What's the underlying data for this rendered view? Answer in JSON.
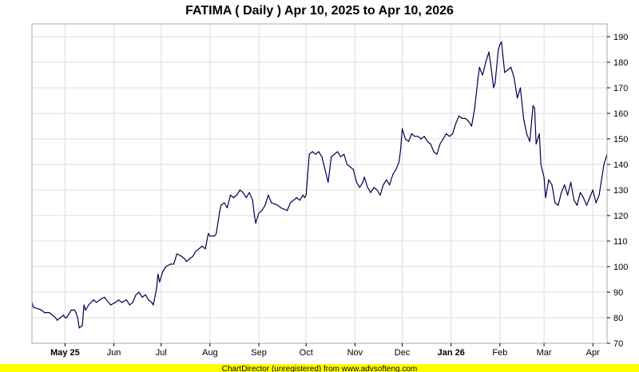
{
  "chart_data": {
    "type": "line",
    "title": "FATIMA ( Daily ) Apr 10, 2025 to Apr 10, 2026",
    "xlabel": "",
    "ylabel": "",
    "ylim": [
      70,
      195
    ],
    "y_ticks": [
      70,
      80,
      90,
      100,
      110,
      120,
      130,
      140,
      150,
      160,
      170,
      180,
      190
    ],
    "x_range": [
      "2025-04-10",
      "2026-04-10"
    ],
    "x_ticks": [
      {
        "label": "May 25",
        "date": "2025-05-01",
        "bold": true
      },
      {
        "label": "Jun",
        "date": "2025-06-01",
        "bold": false
      },
      {
        "label": "Jul",
        "date": "2025-07-01",
        "bold": false
      },
      {
        "label": "Aug",
        "date": "2025-08-01",
        "bold": false
      },
      {
        "label": "Sep",
        "date": "2025-09-01",
        "bold": false
      },
      {
        "label": "Oct",
        "date": "2025-10-01",
        "bold": false
      },
      {
        "label": "Nov",
        "date": "2025-11-01",
        "bold": false
      },
      {
        "label": "Dec",
        "date": "2025-12-01",
        "bold": false
      },
      {
        "label": "Jan 26",
        "date": "2026-01-01",
        "bold": true
      },
      {
        "label": "Feb",
        "date": "2026-02-01",
        "bold": false
      },
      {
        "label": "Mar",
        "date": "2026-03-01",
        "bold": false
      },
      {
        "label": "Apr",
        "date": "2026-04-01",
        "bold": false
      }
    ],
    "grid": true,
    "series": [
      {
        "color": "#000050",
        "points": [
          [
            "2025-04-10",
            86
          ],
          [
            "2025-04-11",
            84
          ],
          [
            "2025-04-14",
            83.5
          ],
          [
            "2025-04-16",
            83
          ],
          [
            "2025-04-18",
            82
          ],
          [
            "2025-04-21",
            82
          ],
          [
            "2025-04-23",
            81
          ],
          [
            "2025-04-25",
            80
          ],
          [
            "2025-04-26",
            79
          ],
          [
            "2025-04-28",
            80
          ],
          [
            "2025-04-30",
            81
          ],
          [
            "2025-05-01",
            80
          ],
          [
            "2025-05-02",
            80
          ],
          [
            "2025-05-05",
            83
          ],
          [
            "2025-05-07",
            83
          ],
          [
            "2025-05-08",
            82
          ],
          [
            "2025-05-09",
            80
          ],
          [
            "2025-05-10",
            76
          ],
          [
            "2025-05-12",
            77
          ],
          [
            "2025-05-13",
            85
          ],
          [
            "2025-05-14",
            83
          ],
          [
            "2025-05-16",
            85
          ],
          [
            "2025-05-19",
            87
          ],
          [
            "2025-05-21",
            86
          ],
          [
            "2025-05-23",
            87
          ],
          [
            "2025-05-26",
            88
          ],
          [
            "2025-05-28",
            86.5
          ],
          [
            "2025-05-30",
            85
          ],
          [
            "2025-06-02",
            86
          ],
          [
            "2025-06-04",
            87
          ],
          [
            "2025-06-06",
            86
          ],
          [
            "2025-06-09",
            87
          ],
          [
            "2025-06-11",
            85
          ],
          [
            "2025-06-13",
            86
          ],
          [
            "2025-06-15",
            89
          ],
          [
            "2025-06-17",
            90
          ],
          [
            "2025-06-19",
            88
          ],
          [
            "2025-06-21",
            89
          ],
          [
            "2025-06-23",
            87
          ],
          [
            "2025-06-25",
            86
          ],
          [
            "2025-06-26",
            85
          ],
          [
            "2025-06-28",
            91
          ],
          [
            "2025-06-29",
            97
          ],
          [
            "2025-06-30",
            94
          ],
          [
            "2025-07-02",
            98
          ],
          [
            "2025-07-04",
            100
          ],
          [
            "2025-07-07",
            101
          ],
          [
            "2025-07-09",
            101
          ],
          [
            "2025-07-11",
            105
          ],
          [
            "2025-07-14",
            104
          ],
          [
            "2025-07-16",
            103
          ],
          [
            "2025-07-17",
            102
          ],
          [
            "2025-07-19",
            103
          ],
          [
            "2025-07-21",
            104
          ],
          [
            "2025-07-23",
            106
          ],
          [
            "2025-07-25",
            107
          ],
          [
            "2025-07-27",
            108
          ],
          [
            "2025-07-29",
            107
          ],
          [
            "2025-07-31",
            113
          ],
          [
            "2025-08-01",
            112
          ],
          [
            "2025-08-04",
            112
          ],
          [
            "2025-08-05",
            113
          ],
          [
            "2025-08-07",
            121
          ],
          [
            "2025-08-08",
            124
          ],
          [
            "2025-08-10",
            125
          ],
          [
            "2025-08-12",
            123
          ],
          [
            "2025-08-14",
            128
          ],
          [
            "2025-08-16",
            127
          ],
          [
            "2025-08-18",
            128
          ],
          [
            "2025-08-20",
            130
          ],
          [
            "2025-08-22",
            129
          ],
          [
            "2025-08-24",
            127
          ],
          [
            "2025-08-26",
            129
          ],
          [
            "2025-08-28",
            126
          ],
          [
            "2025-08-29",
            121
          ],
          [
            "2025-08-30",
            117
          ],
          [
            "2025-09-01",
            121
          ],
          [
            "2025-09-03",
            122
          ],
          [
            "2025-09-05",
            124
          ],
          [
            "2025-09-07",
            128
          ],
          [
            "2025-09-09",
            125
          ],
          [
            "2025-09-11",
            124.5
          ],
          [
            "2025-09-13",
            124
          ],
          [
            "2025-09-15",
            123
          ],
          [
            "2025-09-17",
            122.5
          ],
          [
            "2025-09-19",
            122
          ],
          [
            "2025-09-21",
            125
          ],
          [
            "2025-09-23",
            126
          ],
          [
            "2025-09-25",
            127
          ],
          [
            "2025-09-27",
            126
          ],
          [
            "2025-09-29",
            128
          ],
          [
            "2025-09-30",
            127
          ],
          [
            "2025-10-01",
            128
          ],
          [
            "2025-10-03",
            144
          ],
          [
            "2025-10-05",
            145
          ],
          [
            "2025-10-07",
            144
          ],
          [
            "2025-10-09",
            145
          ],
          [
            "2025-10-11",
            143
          ],
          [
            "2025-10-13",
            138
          ],
          [
            "2025-10-15",
            133
          ],
          [
            "2025-10-17",
            143
          ],
          [
            "2025-10-19",
            144
          ],
          [
            "2025-10-21",
            145
          ],
          [
            "2025-10-23",
            143
          ],
          [
            "2025-10-25",
            144
          ],
          [
            "2025-10-27",
            140
          ],
          [
            "2025-10-29",
            139
          ],
          [
            "2025-10-31",
            138
          ],
          [
            "2025-11-02",
            133
          ],
          [
            "2025-11-04",
            131
          ],
          [
            "2025-11-06",
            133
          ],
          [
            "2025-11-07",
            135
          ],
          [
            "2025-11-09",
            131
          ],
          [
            "2025-11-11",
            129
          ],
          [
            "2025-11-13",
            131
          ],
          [
            "2025-11-15",
            130
          ],
          [
            "2025-11-17",
            128
          ],
          [
            "2025-11-19",
            132
          ],
          [
            "2025-11-21",
            134
          ],
          [
            "2025-11-23",
            132
          ],
          [
            "2025-11-25",
            136
          ],
          [
            "2025-11-27",
            138
          ],
          [
            "2025-11-29",
            141
          ],
          [
            "2025-11-30",
            146
          ],
          [
            "2025-12-01",
            154
          ],
          [
            "2025-12-03",
            150
          ],
          [
            "2025-12-05",
            149
          ],
          [
            "2025-12-07",
            152
          ],
          [
            "2025-12-09",
            151
          ],
          [
            "2025-12-11",
            151
          ],
          [
            "2025-12-13",
            150
          ],
          [
            "2025-12-15",
            151
          ],
          [
            "2025-12-17",
            149
          ],
          [
            "2025-12-19",
            148
          ],
          [
            "2025-12-21",
            145
          ],
          [
            "2025-12-23",
            144
          ],
          [
            "2025-12-25",
            148
          ],
          [
            "2025-12-27",
            150
          ],
          [
            "2025-12-29",
            152
          ],
          [
            "2025-12-31",
            151
          ],
          [
            "2026-01-02",
            152
          ],
          [
            "2026-01-04",
            156
          ],
          [
            "2026-01-06",
            159
          ],
          [
            "2026-01-08",
            158
          ],
          [
            "2026-01-10",
            158
          ],
          [
            "2026-01-12",
            157
          ],
          [
            "2026-01-14",
            155
          ],
          [
            "2026-01-16",
            162
          ],
          [
            "2026-01-18",
            173
          ],
          [
            "2026-01-19",
            178
          ],
          [
            "2026-01-21",
            175
          ],
          [
            "2026-01-23",
            180
          ],
          [
            "2026-01-25",
            184
          ],
          [
            "2026-01-26",
            180
          ],
          [
            "2026-01-28",
            170
          ],
          [
            "2026-01-29",
            172
          ],
          [
            "2026-01-31",
            185
          ],
          [
            "2026-02-01",
            187
          ],
          [
            "2026-02-02",
            188
          ],
          [
            "2026-02-04",
            176
          ],
          [
            "2026-02-06",
            177
          ],
          [
            "2026-02-08",
            178
          ],
          [
            "2026-02-10",
            174
          ],
          [
            "2026-02-12",
            166
          ],
          [
            "2026-02-14",
            170
          ],
          [
            "2026-02-16",
            158
          ],
          [
            "2026-02-18",
            152
          ],
          [
            "2026-02-20",
            149
          ],
          [
            "2026-02-22",
            163
          ],
          [
            "2026-02-23",
            162
          ],
          [
            "2026-02-24",
            148
          ],
          [
            "2026-02-26",
            152
          ],
          [
            "2026-02-27",
            140
          ],
          [
            "2026-03-01",
            135
          ],
          [
            "2026-03-02",
            127
          ],
          [
            "2026-03-04",
            134
          ],
          [
            "2026-03-06",
            132
          ],
          [
            "2026-03-08",
            125
          ],
          [
            "2026-03-10",
            124
          ],
          [
            "2026-03-12",
            129
          ],
          [
            "2026-03-14",
            132
          ],
          [
            "2026-03-16",
            128
          ],
          [
            "2026-03-18",
            133
          ],
          [
            "2026-03-20",
            126
          ],
          [
            "2026-03-22",
            124
          ],
          [
            "2026-03-24",
            129
          ],
          [
            "2026-03-26",
            127
          ],
          [
            "2026-03-28",
            124
          ],
          [
            "2026-03-30",
            127
          ],
          [
            "2026-04-01",
            130
          ],
          [
            "2026-04-03",
            125
          ],
          [
            "2026-04-05",
            128
          ],
          [
            "2026-04-08",
            140
          ],
          [
            "2026-04-10",
            144
          ]
        ]
      }
    ]
  },
  "footer": {
    "text": "ChartDirector (unregistered) from www.advsofteng.com"
  },
  "colors": {
    "line": "#000050",
    "grid": "#dddddd",
    "frame": "#aaaaaa",
    "footer_bg": "#ffff00"
  }
}
